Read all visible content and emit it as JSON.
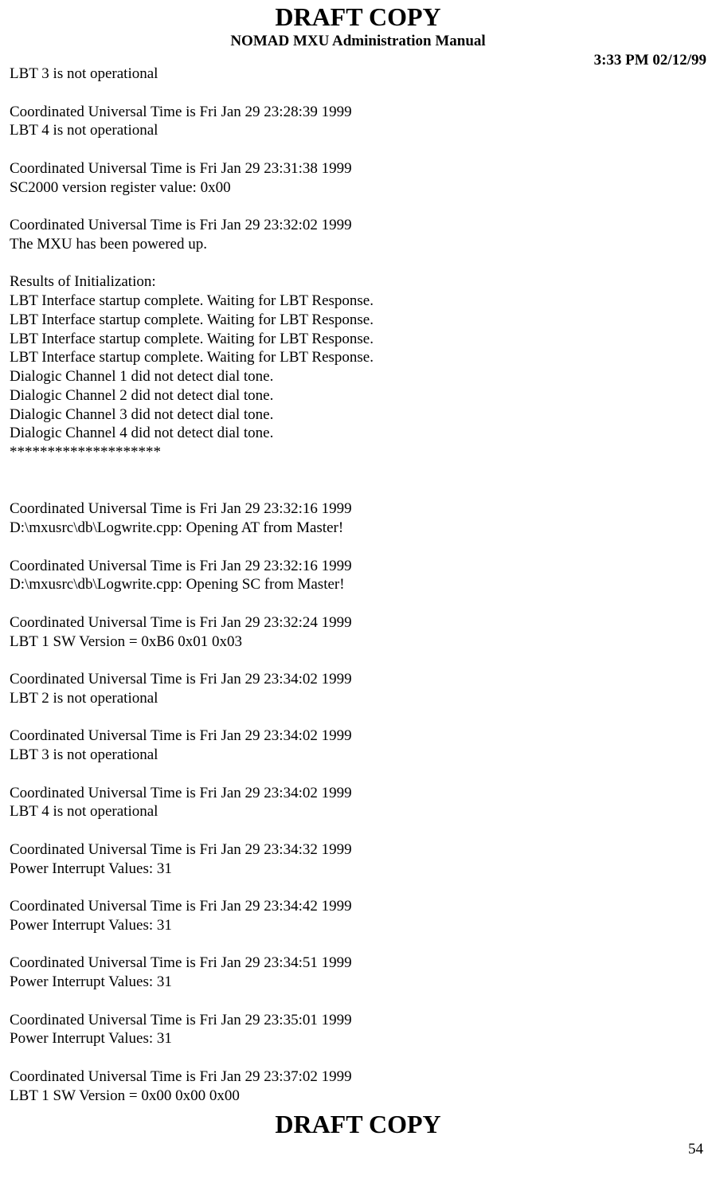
{
  "header": {
    "draft": "DRAFT COPY",
    "subtitle": "NOMAD MXU Administration Manual",
    "timestamp": "3:33 PM  02/12/99"
  },
  "body": "LBT 3 is not operational\n\nCoordinated Universal Time is Fri Jan 29 23:28:39 1999\nLBT 4 is not operational\n\nCoordinated Universal Time is Fri Jan 29 23:31:38 1999\nSC2000 version register value: 0x00\n\nCoordinated Universal Time is Fri Jan 29 23:32:02 1999\nThe MXU has been powered up.\n\nResults of Initialization:\nLBT Interface startup complete. Waiting for LBT Response.\nLBT Interface startup complete. Waiting for LBT Response.\nLBT Interface startup complete. Waiting for LBT Response.\nLBT Interface startup complete. Waiting for LBT Response.\nDialogic Channel 1 did not detect dial tone.\nDialogic Channel 2 did not detect dial tone.\nDialogic Channel 3 did not detect dial tone.\nDialogic Channel 4 did not detect dial tone.\n********************\n\n\nCoordinated Universal Time is Fri Jan 29 23:32:16 1999\nD:\\mxusrc\\db\\Logwrite.cpp: Opening AT from Master!\n\nCoordinated Universal Time is Fri Jan 29 23:32:16 1999\nD:\\mxusrc\\db\\Logwrite.cpp: Opening SC from Master!\n\nCoordinated Universal Time is Fri Jan 29 23:32:24 1999\nLBT 1 SW Version = 0xB6 0x01 0x03\n\nCoordinated Universal Time is Fri Jan 29 23:34:02 1999\nLBT 2 is not operational\n\nCoordinated Universal Time is Fri Jan 29 23:34:02 1999\nLBT 3 is not operational\n\nCoordinated Universal Time is Fri Jan 29 23:34:02 1999\nLBT 4 is not operational\n\nCoordinated Universal Time is Fri Jan 29 23:34:32 1999\nPower Interrupt Values: 31\n\nCoordinated Universal Time is Fri Jan 29 23:34:42 1999\nPower Interrupt Values: 31\n\nCoordinated Universal Time is Fri Jan 29 23:34:51 1999\nPower Interrupt Values: 31\n\nCoordinated Universal Time is Fri Jan 29 23:35:01 1999\nPower Interrupt Values: 31\n\nCoordinated Universal Time is Fri Jan 29 23:37:02 1999\nLBT 1 SW Version = 0x00 0x00 0x00",
  "footer": {
    "draft": "DRAFT COPY",
    "page_number": "54"
  }
}
